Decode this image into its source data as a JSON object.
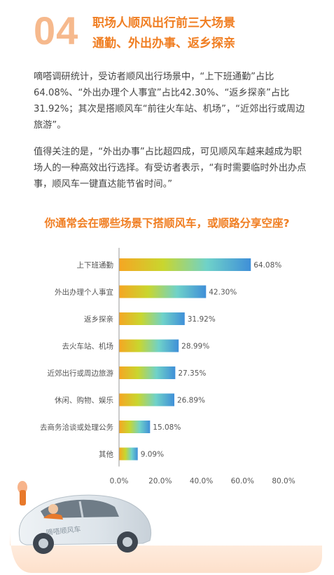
{
  "header": {
    "number": "04",
    "title_line1": "职场人顺风出行前三大场景",
    "title_line2": "通勤、外出办事、返乡探亲"
  },
  "body": {
    "paragraph1": "嘀嗒调研统计，受访者顺风出行场景中，“上下班通勤”占比64.08%、“外出办理个人事宜”占比42.30%、“返乡探亲”占比31.92%；其次是搭顺风车“前往火车站、机场”，“近郊出行或周边旅游”。",
    "paragraph2": "值得关注的是，“外出办事”占比超四成，可见顺风车越来越成为职场人的一种高效出行选择。有受访者表示，“有时需要临时外出办点事，顺风车一键直达能节省时间。”"
  },
  "question": "你通常会在哪些场景下搭顺风车，或顺路分享空座?",
  "chart_data": {
    "type": "bar",
    "orientation": "horizontal",
    "categories": [
      "上下班通勤",
      "外出办理个人事宜",
      "返乡探亲",
      "去火车站、机场",
      "近郊出行或周边旅游",
      "休闲、购物、娱乐",
      "去商务洽谈或处理公务",
      "其他"
    ],
    "values": [
      64.08,
      42.3,
      31.92,
      28.99,
      27.35,
      26.89,
      15.08,
      9.09
    ],
    "value_labels": [
      "64.08%",
      "42.30%",
      "31.92%",
      "28.99%",
      "27.35%",
      "26.89%",
      "15.08%",
      "9.09%"
    ],
    "xlim": [
      0,
      80
    ],
    "xticks": [
      0,
      20,
      40,
      60,
      80
    ],
    "xtick_labels": [
      "0.0%",
      "20.0%",
      "40.0%",
      "60.0%",
      "80.0%"
    ],
    "grid": false,
    "colors": {
      "gradient": [
        "#f5a623",
        "#c9d62e",
        "#6fd2c9",
        "#3f8fd8"
      ],
      "label": "#555555",
      "axis": "#999999"
    }
  },
  "illustration": {
    "car_text": "嘀嗒顺风车"
  }
}
